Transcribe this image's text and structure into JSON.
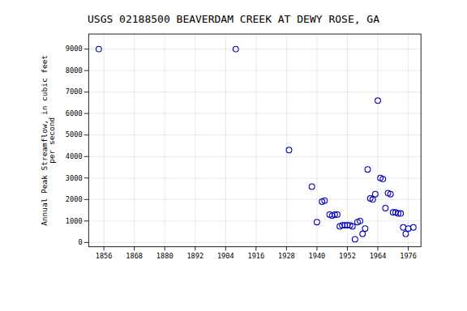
{
  "chart_data": {
    "type": "scatter",
    "title": "USGS 02188500 BEAVERDAM CREEK AT DEWY ROSE, GA",
    "ylabel": "Annual Peak Streamflow, in cubic feet\nper second",
    "x": [
      1854,
      1908,
      1929,
      1938,
      1940,
      1942,
      1943,
      1945,
      1946,
      1947,
      1948,
      1949,
      1950,
      1951,
      1952,
      1953,
      1954,
      1955,
      1956,
      1957,
      1958,
      1959,
      1960,
      1961,
      1962,
      1963,
      1964,
      1965,
      1966,
      1967,
      1968,
      1969,
      1970,
      1971,
      1972,
      1973,
      1974,
      1975,
      1976,
      1978
    ],
    "values": [
      9000,
      9000,
      4300,
      2600,
      950,
      1900,
      1950,
      1300,
      1250,
      1300,
      1300,
      750,
      800,
      800,
      800,
      800,
      750,
      150,
      950,
      1000,
      400,
      650,
      3400,
      2050,
      2000,
      2250,
      6600,
      3000,
      2950,
      1600,
      2300,
      2250,
      1400,
      1400,
      1350,
      1350,
      700,
      400,
      650,
      700
    ],
    "color": "#0000bb",
    "marker": "circle",
    "xlim": [
      1850,
      1981
    ],
    "ylim": [
      -200,
      9700
    ],
    "xticks": [
      1856,
      1868,
      1880,
      1892,
      1904,
      1916,
      1928,
      1940,
      1952,
      1964,
      1976
    ],
    "yticks": [
      0,
      1000,
      2000,
      3000,
      4000,
      5000,
      6000,
      7000,
      8000,
      9000
    ],
    "grid": true
  }
}
